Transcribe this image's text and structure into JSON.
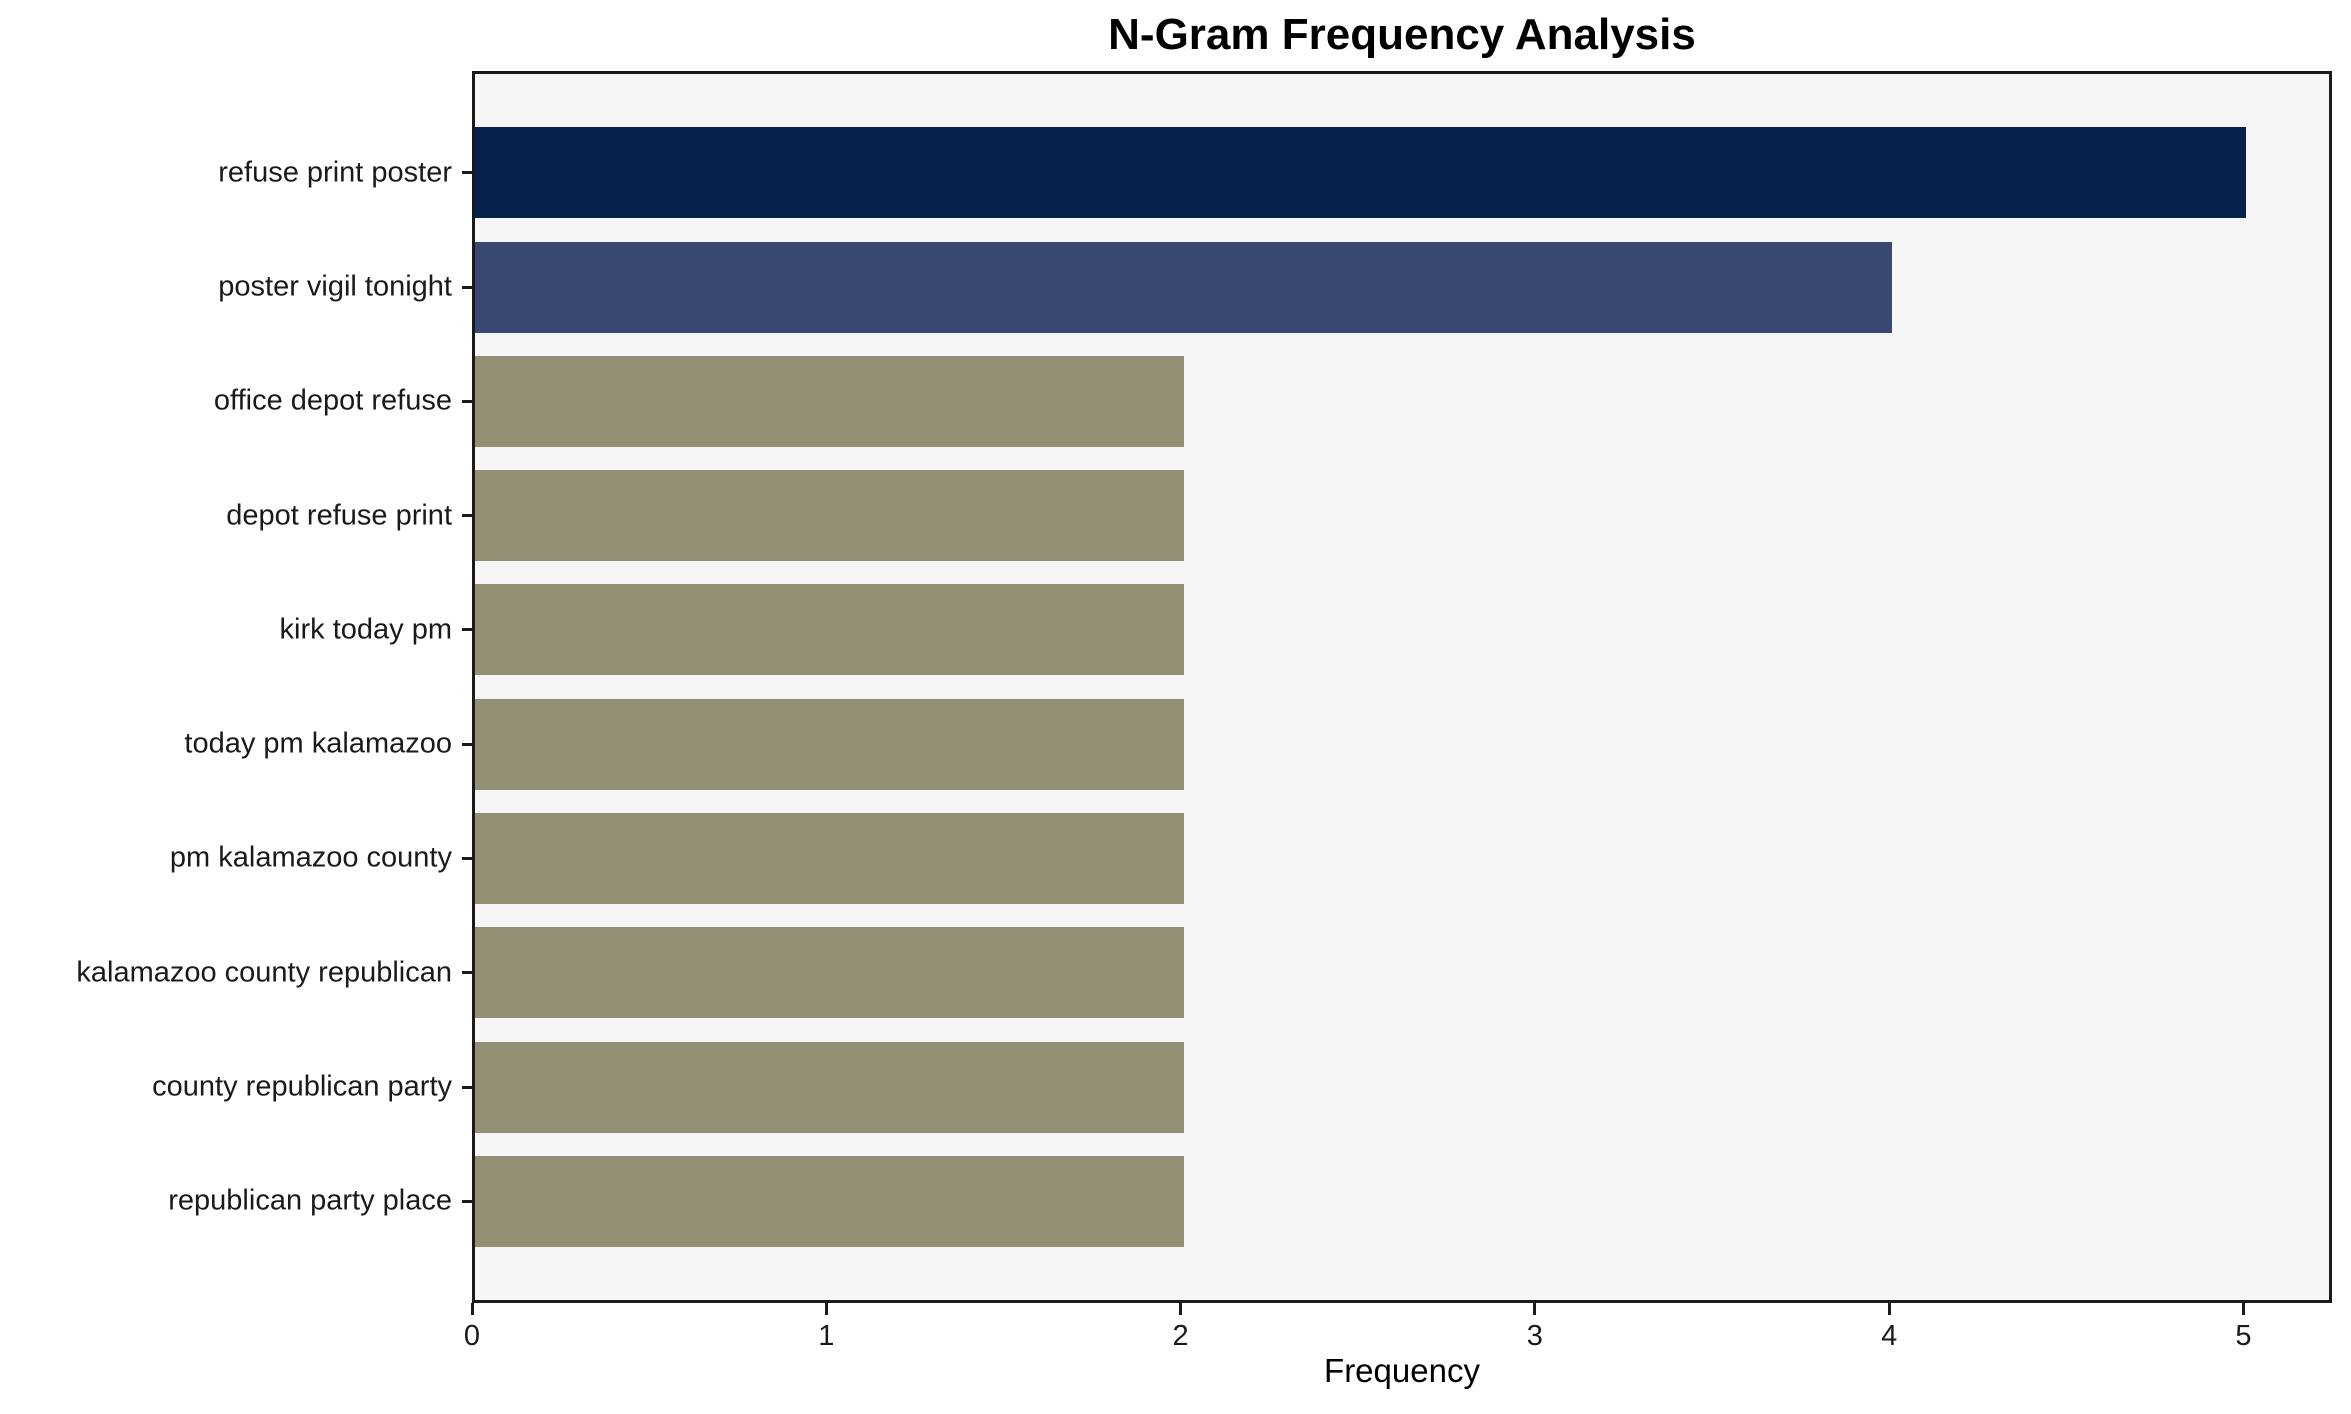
{
  "chart_data": {
    "type": "bar",
    "orientation": "horizontal",
    "title": "N-Gram Frequency Analysis",
    "xlabel": "Frequency",
    "ylabel": "",
    "categories": [
      "refuse print poster",
      "poster vigil tonight",
      "office depot refuse",
      "depot refuse print",
      "kirk today pm",
      "today pm kalamazoo",
      "pm kalamazoo county",
      "kalamazoo county republican",
      "county republican party",
      "republican party place"
    ],
    "values": [
      5,
      4,
      2,
      2,
      2,
      2,
      2,
      2,
      2,
      2
    ],
    "bar_colors": [
      "#05234d",
      "#394870",
      "#938f75",
      "#938f75",
      "#938f75",
      "#938f75",
      "#938f75",
      "#938f75",
      "#938f75",
      "#938f75"
    ],
    "xticks": [
      0,
      1,
      2,
      3,
      4,
      5
    ],
    "xlim": [
      0,
      5.25
    ],
    "grid": false,
    "legend_position": "none",
    "plot_background": "#f6f6f7",
    "axis_color": "#1a1a1a"
  }
}
